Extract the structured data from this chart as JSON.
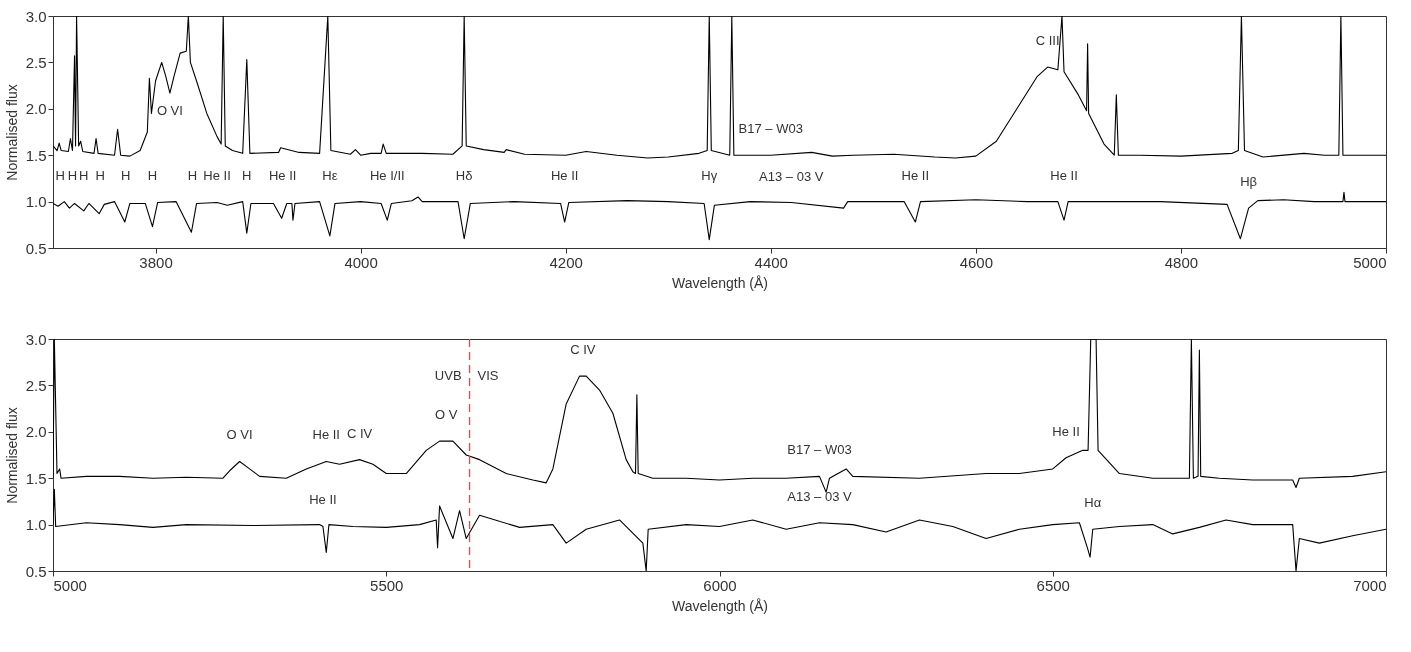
{
  "chart_data": [
    {
      "type": "line",
      "xlabel": "Wavelength (Å)",
      "ylabel": "Normalised flux",
      "xlim": [
        3700,
        5000
      ],
      "xticks": [
        3800,
        4000,
        4200,
        4400,
        4600,
        4800,
        5000
      ],
      "ylim": [
        0.5,
        3
      ],
      "yticks": [
        0.5,
        {
          "value": 1,
          "label": "1.0"
        },
        1.5,
        {
          "value": 2,
          "label": "2.0"
        },
        2.5,
        {
          "value": 3,
          "label": "3.0"
        }
      ],
      "line_style": "solid",
      "series": [
        {
          "color": "#000000",
          "x": [
            3700,
            3704,
            3706,
            3708,
            3715,
            3717,
            3719,
            3721,
            3722,
            3723,
            3725,
            3727,
            3729,
            3740,
            3742,
            3744,
            3760,
            3763,
            3766,
            3775,
            3785,
            3792,
            3794,
            3796,
            3800,
            3806,
            3810,
            3814,
            3818,
            3824,
            3830,
            3832,
            3834,
            3840,
            3850,
            3860,
            3864,
            3866,
            3868,
            3875,
            3885,
            3889,
            3892,
            3920,
            3922,
            3940,
            3960,
            3968,
            3971,
            3990,
            3995,
            4000,
            4010,
            4020,
            4022,
            4025,
            4060,
            4090,
            4099,
            4101,
            4103,
            4120,
            4140,
            4142,
            4160,
            4200,
            4220,
            4250,
            4280,
            4300,
            4330,
            4338,
            4340,
            4342,
            4360,
            4362,
            4364,
            4400,
            4440,
            4460,
            4480,
            4520,
            4560,
            4580,
            4600,
            4620,
            4640,
            4660,
            4670,
            4680,
            4684,
            4686,
            4700,
            4708,
            4709,
            4710,
            4725,
            4735,
            4737,
            4739,
            4760,
            4800,
            4850,
            4856,
            4859,
            4862,
            4880,
            4920,
            4940,
            4954,
            4956,
            4958,
            5000
          ],
          "values": [
            1.6,
            1.55,
            1.63,
            1.55,
            1.54,
            1.68,
            1.55,
            2.57,
            1.6,
            3.0,
            1.6,
            1.65,
            1.54,
            1.52,
            1.68,
            1.52,
            1.5,
            1.78,
            1.5,
            1.49,
            1.55,
            1.75,
            2.33,
            1.95,
            2.3,
            2.5,
            2.35,
            2.17,
            2.35,
            2.6,
            2.62,
            3.0,
            2.5,
            2.3,
            1.95,
            1.7,
            1.62,
            3.0,
            1.6,
            1.55,
            1.52,
            2.53,
            1.52,
            1.53,
            1.58,
            1.53,
            1.52,
            3.0,
            1.55,
            1.51,
            1.56,
            1.5,
            1.52,
            1.52,
            1.62,
            1.52,
            1.52,
            1.51,
            1.6,
            3.0,
            1.6,
            1.56,
            1.53,
            1.56,
            1.51,
            1.5,
            1.54,
            1.5,
            1.47,
            1.48,
            1.52,
            1.55,
            3.0,
            1.55,
            1.5,
            3.0,
            1.5,
            1.5,
            1.53,
            1.49,
            1.5,
            1.51,
            1.48,
            1.47,
            1.49,
            1.65,
            2.0,
            2.35,
            2.45,
            2.42,
            3.0,
            2.4,
            2.15,
            1.98,
            2.7,
            1.95,
            1.62,
            1.5,
            2.15,
            1.5,
            1.5,
            1.49,
            1.52,
            1.55,
            3.0,
            1.55,
            1.48,
            1.52,
            1.5,
            1.5,
            3.0,
            1.5,
            1.5
          ]
        },
        {
          "color": "#000000",
          "x": [
            3700,
            3705,
            3711,
            3716,
            3721,
            3730,
            3735,
            3745,
            3750,
            3760,
            3770,
            3775,
            3790,
            3797,
            3802,
            3820,
            3835,
            3840,
            3860,
            3870,
            3885,
            3889,
            3893,
            3915,
            3923,
            3928,
            3933,
            3934,
            3936,
            3960,
            3970,
            3975,
            4000,
            4020,
            4026,
            4030,
            4050,
            4056,
            4060,
            4095,
            4101,
            4107,
            4150,
            4195,
            4199,
            4203,
            4260,
            4300,
            4335,
            4340,
            4345,
            4380,
            4420,
            4471,
            4475,
            4530,
            4541,
            4546,
            4600,
            4650,
            4680,
            4686,
            4690,
            4730,
            4780,
            4845,
            4858,
            4866,
            4875,
            4900,
            4930,
            4958,
            4959,
            4960,
            5000
          ],
          "values": [
            0.98,
            0.95,
            1.0,
            0.93,
            0.98,
            0.9,
            0.98,
            0.87,
            0.97,
            1.0,
            0.78,
            0.98,
            0.98,
            0.73,
            0.99,
            1.0,
            0.67,
            0.98,
            0.99,
            0.96,
            1.0,
            0.66,
            0.98,
            0.98,
            0.82,
            0.98,
            0.98,
            0.8,
            0.98,
            1.0,
            0.63,
            0.98,
            1.0,
            0.98,
            0.8,
            0.98,
            1.01,
            1.05,
            1.0,
            1.0,
            0.6,
            0.98,
            1.0,
            0.98,
            0.78,
            0.99,
            1.01,
            1.0,
            0.98,
            0.59,
            0.96,
            1.0,
            0.99,
            0.93,
            1.0,
            1.0,
            0.78,
            1.0,
            1.02,
            1.0,
            1.0,
            0.8,
            1.0,
            1.0,
            1.0,
            0.97,
            0.6,
            0.93,
            1.01,
            1.02,
            1.0,
            1.0,
            1.1,
            1.0,
            1.0
          ]
        }
      ],
      "annotations": [
        {
          "text": "O VI",
          "x": 3814,
          "y": 2.17
        },
        {
          "text": "C III",
          "x": 4670,
          "y": 2.45
        },
        {
          "text": "B17 – W03",
          "x": 4400,
          "y": 1.5
        },
        {
          "text": "A13 – 03 V",
          "x": 4420,
          "y": 0.99
        },
        {
          "text": "H",
          "x": 3707,
          "y": 1.0
        },
        {
          "text": "H",
          "x": 3719,
          "y": 1.0
        },
        {
          "text": "H",
          "x": 3730,
          "y": 1.0
        },
        {
          "text": "H",
          "x": 3746,
          "y": 1.0
        },
        {
          "text": "H",
          "x": 3771,
          "y": 1.0
        },
        {
          "text": "H",
          "x": 3797,
          "y": 1.0
        },
        {
          "text": "H",
          "x": 3836,
          "y": 1.0
        },
        {
          "text": "He II",
          "x": 3860,
          "y": 1.0
        },
        {
          "text": "H",
          "x": 3889,
          "y": 1.0
        },
        {
          "text": "He II",
          "x": 3924,
          "y": 1.0
        },
        {
          "text": "Hε",
          "x": 3970,
          "y": 1.0
        },
        {
          "text": "He I/II",
          "x": 4026,
          "y": 1.0
        },
        {
          "text": "Hδ",
          "x": 4101,
          "y": 1.0
        },
        {
          "text": "He II",
          "x": 4199,
          "y": 1.0
        },
        {
          "text": "Hγ",
          "x": 4340,
          "y": 1.0
        },
        {
          "text": "He II",
          "x": 4541,
          "y": 1.0
        },
        {
          "text": "He II",
          "x": 4686,
          "y": 1.0
        },
        {
          "text": "Hβ",
          "x": 4866,
          "y": 0.93
        }
      ]
    },
    {
      "type": "line",
      "xlabel": "Wavelength (Å)",
      "ylabel": "Normalised flux",
      "xlim": [
        5000,
        7000
      ],
      "xticks": [
        5000,
        5500,
        6000,
        6500,
        7000
      ],
      "ylim": [
        0.5,
        3
      ],
      "yticks": [
        0.5,
        {
          "value": 1,
          "label": "1.0"
        },
        1.5,
        {
          "value": 2,
          "label": "2.0"
        },
        2.5,
        {
          "value": 3,
          "label": "3.0"
        }
      ],
      "line_style": "solid",
      "series": [
        {
          "color": "#000000",
          "x": [
            5000,
            5002,
            5006,
            5010,
            5012,
            5050,
            5100,
            5150,
            5200,
            5255,
            5265,
            5280,
            5295,
            5310,
            5350,
            5380,
            5410,
            5430,
            5460,
            5480,
            5500,
            5530,
            5560,
            5580,
            5600,
            5620,
            5640,
            5680,
            5720,
            5740,
            5750,
            5770,
            5790,
            5800,
            5820,
            5840,
            5860,
            5870,
            5874,
            5876,
            5878,
            5900,
            5950,
            6000,
            6050,
            6100,
            6150,
            6160,
            6165,
            6190,
            6200,
            6300,
            6400,
            6450,
            6500,
            6520,
            6545,
            6553,
            6557,
            6565,
            6568,
            6600,
            6650,
            6680,
            6705,
            6708,
            6711,
            6718,
            6720,
            6722,
            6750,
            6800,
            6860,
            6865,
            6870,
            6950,
            7000
          ],
          "values": [
            1.5,
            3.0,
            1.55,
            1.6,
            1.5,
            1.52,
            1.52,
            1.5,
            1.51,
            1.5,
            1.58,
            1.68,
            1.6,
            1.52,
            1.5,
            1.6,
            1.68,
            1.65,
            1.7,
            1.65,
            1.55,
            1.55,
            1.8,
            1.9,
            1.9,
            1.75,
            1.7,
            1.55,
            1.48,
            1.45,
            1.6,
            2.3,
            2.6,
            2.6,
            2.45,
            2.2,
            1.7,
            1.57,
            1.55,
            2.4,
            1.55,
            1.5,
            1.5,
            1.48,
            1.5,
            1.5,
            1.52,
            1.35,
            1.5,
            1.6,
            1.52,
            1.5,
            1.55,
            1.55,
            1.6,
            1.72,
            1.8,
            1.8,
            3.0,
            3.0,
            1.8,
            1.55,
            1.5,
            1.5,
            1.5,
            3.0,
            1.5,
            1.52,
            2.88,
            1.52,
            1.5,
            1.48,
            1.48,
            1.4,
            1.5,
            1.52,
            1.57
          ]
        },
        {
          "color": "#000000",
          "x": [
            5000,
            5002,
            5004,
            5050,
            5100,
            5150,
            5200,
            5300,
            5400,
            5405,
            5410,
            5414,
            5450,
            5500,
            5550,
            5575,
            5577,
            5580,
            5600,
            5610,
            5620,
            5640,
            5700,
            5750,
            5770,
            5800,
            5850,
            5885,
            5890,
            5893,
            5950,
            6000,
            6050,
            6100,
            6150,
            6200,
            6250,
            6300,
            6350,
            6400,
            6450,
            6500,
            6540,
            6552,
            6556,
            6560,
            6600,
            6650,
            6680,
            6720,
            6760,
            6800,
            6860,
            6865,
            6870,
            6900,
            6950,
            7000
          ],
          "values": [
            1.0,
            1.38,
            0.98,
            1.02,
            1.0,
            0.97,
            1.0,
            0.99,
            1.0,
            0.98,
            0.7,
            1.0,
            0.98,
            0.97,
            1.0,
            1.05,
            0.75,
            1.2,
            0.85,
            1.15,
            0.85,
            1.1,
            0.97,
            1.0,
            0.8,
            0.95,
            1.05,
            0.8,
            0.5,
            0.95,
            1.0,
            0.98,
            1.05,
            0.95,
            1.02,
            1.0,
            0.92,
            1.05,
            0.98,
            0.85,
            0.95,
            1.0,
            1.02,
            0.75,
            0.65,
            0.95,
            0.98,
            1.0,
            0.9,
            0.97,
            1.05,
            1.0,
            1.0,
            0.5,
            0.85,
            0.8,
            0.88,
            0.95
          ]
        }
      ],
      "ref_lines": [
        {
          "axis": "x",
          "value": 5625,
          "color": "#e8474c",
          "line_style": "dashed"
        }
      ],
      "annotations": [
        {
          "text": "O VI",
          "x": 5280,
          "y": 1.68
        },
        {
          "text": "He II",
          "x": 5410,
          "y": 1.68
        },
        {
          "text": "C IV",
          "x": 5460,
          "y": 1.7
        },
        {
          "text": "O V",
          "x": 5590,
          "y": 1.9
        },
        {
          "text": "UVB",
          "x": 5625,
          "y": 2.6
        },
        {
          "text": "VIS",
          "x": 5625,
          "y": 2.6
        },
        {
          "text": "C IV",
          "x": 5795,
          "y": 2.6
        },
        {
          "text": "He II",
          "x": 5405,
          "y": 0.98
        },
        {
          "text": "B17 – W03",
          "x": 6150,
          "y": 1.52
        },
        {
          "text": "A13 – 03 V",
          "x": 6150,
          "y": 1.02
        },
        {
          "text": "He II",
          "x": 6520,
          "y": 1.72
        },
        {
          "text": "Hα",
          "x": 6560,
          "y": 0.95
        }
      ]
    }
  ]
}
